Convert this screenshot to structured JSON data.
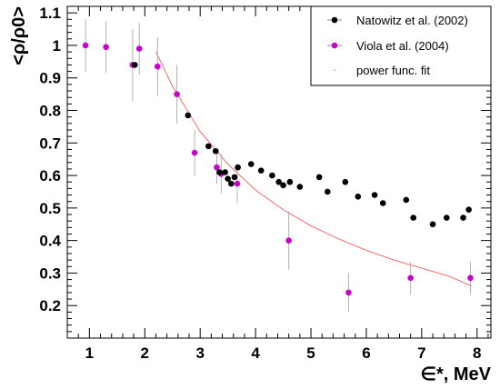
{
  "chart_data": {
    "type": "scatter",
    "xlabel": "∈*, MeV",
    "ylabel": "<ρ/ρ0>",
    "xlim": [
      0.6,
      8.25
    ],
    "ylim": [
      0.1,
      1.12
    ],
    "xticks": [
      "1",
      "2",
      "3",
      "4",
      "5",
      "6",
      "7",
      "8"
    ],
    "yticks": [
      "0.2",
      "0.3",
      "0.4",
      "0.5",
      "0.6",
      "0.7",
      "0.8",
      "0.9",
      "1",
      "1.1"
    ],
    "grid": false,
    "legend_position": "top-right",
    "colors": {
      "natowitz": "#000000",
      "viola": "#cc00cc",
      "fit": "#ff4444",
      "errorbar": "#b0b0b0"
    },
    "series": [
      {
        "name": "Natowitz et al. (2002)",
        "marker": "filled-circle",
        "points": [
          {
            "x": 1.82,
            "y": 0.94
          },
          {
            "x": 2.78,
            "y": 0.785
          },
          {
            "x": 3.15,
            "y": 0.69
          },
          {
            "x": 3.28,
            "y": 0.675
          },
          {
            "x": 3.35,
            "y": 0.61
          },
          {
            "x": 3.45,
            "y": 0.61
          },
          {
            "x": 3.5,
            "y": 0.59
          },
          {
            "x": 3.56,
            "y": 0.575
          },
          {
            "x": 3.62,
            "y": 0.595
          },
          {
            "x": 3.68,
            "y": 0.625
          },
          {
            "x": 3.92,
            "y": 0.635
          },
          {
            "x": 4.1,
            "y": 0.615
          },
          {
            "x": 4.3,
            "y": 0.6
          },
          {
            "x": 4.42,
            "y": 0.58
          },
          {
            "x": 4.5,
            "y": 0.57
          },
          {
            "x": 4.62,
            "y": 0.58
          },
          {
            "x": 4.8,
            "y": 0.565
          },
          {
            "x": 5.15,
            "y": 0.595
          },
          {
            "x": 5.3,
            "y": 0.55
          },
          {
            "x": 5.62,
            "y": 0.58
          },
          {
            "x": 5.85,
            "y": 0.535
          },
          {
            "x": 6.15,
            "y": 0.54
          },
          {
            "x": 6.3,
            "y": 0.515
          },
          {
            "x": 6.72,
            "y": 0.525
          },
          {
            "x": 6.85,
            "y": 0.47
          },
          {
            "x": 7.2,
            "y": 0.45
          },
          {
            "x": 7.45,
            "y": 0.47
          },
          {
            "x": 7.75,
            "y": 0.47
          },
          {
            "x": 7.85,
            "y": 0.495
          }
        ]
      },
      {
        "name": "Viola et al. (2004)",
        "marker": "filled-circle",
        "points": [
          {
            "x": 0.93,
            "y": 1.0,
            "err": 0.08
          },
          {
            "x": 1.3,
            "y": 0.995,
            "err": 0.08
          },
          {
            "x": 1.78,
            "y": 0.94,
            "err": 0.11
          },
          {
            "x": 1.9,
            "y": 0.99,
            "err": 0.08
          },
          {
            "x": 2.23,
            "y": 0.935,
            "err": 0.09
          },
          {
            "x": 2.58,
            "y": 0.85,
            "err": 0.09
          },
          {
            "x": 2.9,
            "y": 0.67,
            "err": 0.07
          },
          {
            "x": 3.3,
            "y": 0.625,
            "err": 0.05
          },
          {
            "x": 3.38,
            "y": 0.605,
            "err": 0.06
          },
          {
            "x": 3.67,
            "y": 0.575,
            "err": 0.06
          },
          {
            "x": 4.6,
            "y": 0.4,
            "err": 0.09
          },
          {
            "x": 5.68,
            "y": 0.24,
            "err": 0.06
          },
          {
            "x": 6.8,
            "y": 0.285,
            "err": 0.05
          },
          {
            "x": 7.88,
            "y": 0.285,
            "err": 0.05
          }
        ]
      },
      {
        "name": "power func. fit",
        "line": "thin-solid",
        "points": [
          {
            "x": 2.2,
            "y": 0.98
          },
          {
            "x": 2.5,
            "y": 0.875
          },
          {
            "x": 3.0,
            "y": 0.735
          },
          {
            "x": 3.5,
            "y": 0.635
          },
          {
            "x": 4.0,
            "y": 0.555
          },
          {
            "x": 4.5,
            "y": 0.495
          },
          {
            "x": 5.0,
            "y": 0.445
          },
          {
            "x": 5.5,
            "y": 0.405
          },
          {
            "x": 6.0,
            "y": 0.37
          },
          {
            "x": 6.5,
            "y": 0.34
          },
          {
            "x": 7.0,
            "y": 0.315
          },
          {
            "x": 7.5,
            "y": 0.29
          },
          {
            "x": 7.9,
            "y": 0.26
          }
        ]
      }
    ]
  }
}
